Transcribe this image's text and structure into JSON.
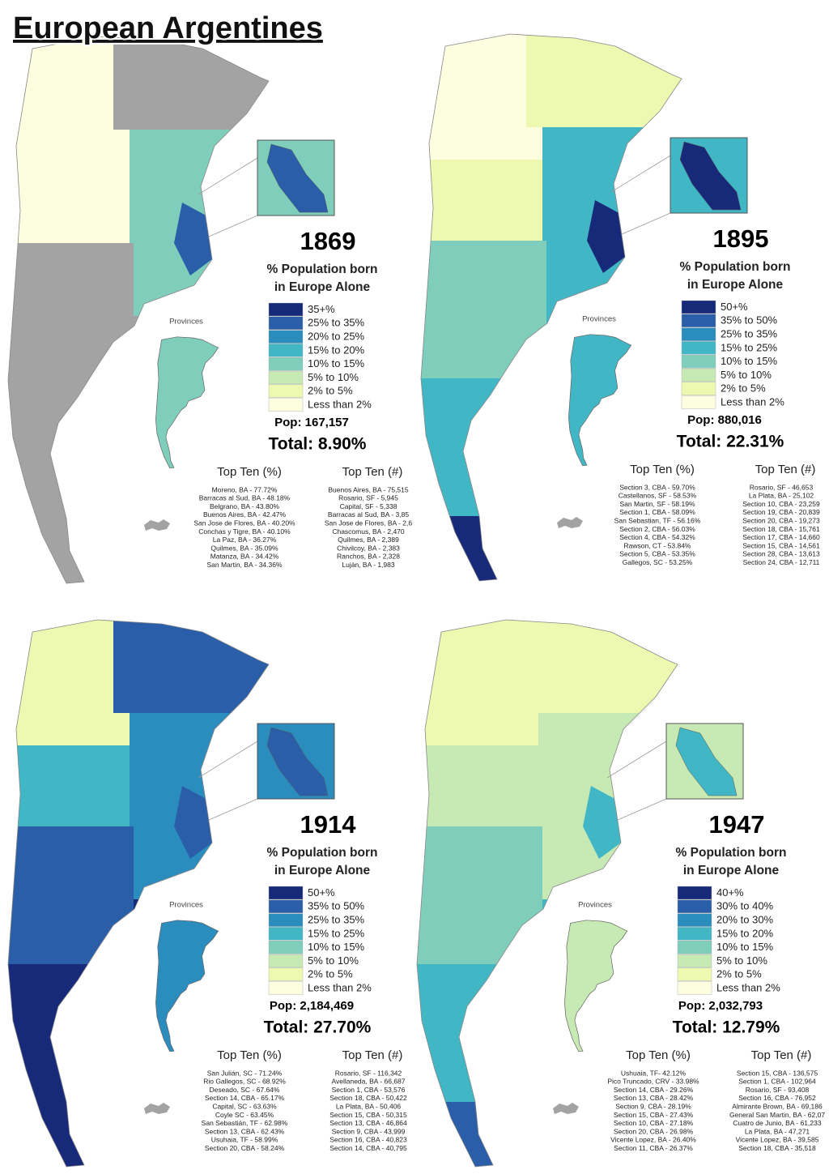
{
  "title": "European Argentines",
  "panels": [
    {
      "year": "1869",
      "subtitle": [
        "% Population born",
        "in Europe Alone"
      ],
      "provinces_label": "Provinces",
      "legend": [
        {
          "label": "35+%",
          "color": "#172a7a"
        },
        {
          "label": "25% to 35%",
          "color": "#2a5ea8"
        },
        {
          "label": "20% to 25%",
          "color": "#2b8cbe"
        },
        {
          "label": "15% to 20%",
          "color": "#41b6c4"
        },
        {
          "label": "10% to 15%",
          "color": "#7fcdbb"
        },
        {
          "label": "5% to 10%",
          "color": "#c7e9b4"
        },
        {
          "label": "2% to 5%",
          "color": "#edf8b1"
        },
        {
          "label": "Less than 2%",
          "color": "#fdfde0"
        }
      ],
      "pop": "Pop: 167,157",
      "total": "Total: 8.90%",
      "top_pct_heading": "Top Ten (%)",
      "top_pct": [
        "Moreno, BA - 77.72%",
        "Barracas al Sud, BA - 48.18%",
        "Belgrano, BA - 43.80%",
        "Buenos Aires, BA - 42.47%",
        "San Jose de Flores, BA - 40.20%",
        "Conchas y Tigre, BA - 40.10%",
        "La Paz, BA - 36.27%",
        "Quilmes, BA - 35.09%",
        "Matanza, BA - 34.42%",
        "San Martin, BA - 34.36%"
      ],
      "top_num_heading": "Top Ten (#)",
      "top_num": [
        "Buenos Aires, BA - 75,515",
        "Rosario, SF - 5,945",
        "Capital, SF - 5,338",
        "Barracas al Sud, BA - 3,85",
        "San Jose de Flores, BA - 2,6",
        "Chascomus, BA - 2,470",
        "Quilmes, BA - 2,389",
        "Chivilcoy, BA - 2,383",
        "Ranchos, BA - 2,328",
        "Luján, BA - 1,983"
      ]
    },
    {
      "year": "1895",
      "subtitle": [
        "% Population born",
        "in Europe Alone"
      ],
      "provinces_label": "Provinces",
      "legend": [
        {
          "label": "50+%",
          "color": "#172a7a"
        },
        {
          "label": "35% to 50%",
          "color": "#2a5ea8"
        },
        {
          "label": "25% to 35%",
          "color": "#2b8cbe"
        },
        {
          "label": "15% to 25%",
          "color": "#41b6c4"
        },
        {
          "label": "10% to 15%",
          "color": "#7fcdbb"
        },
        {
          "label": "5% to 10%",
          "color": "#c7e9b4"
        },
        {
          "label": "2% to 5%",
          "color": "#edf8b1"
        },
        {
          "label": "Less than 2%",
          "color": "#fdfde0"
        }
      ],
      "pop": "Pop: 880,016",
      "total": "Total: 22.31%",
      "top_pct_heading": "Top Ten (%)",
      "top_pct": [
        "Section 3, CBA - 59.70%",
        "Castellanos, SF - 58.53%",
        "San Martin, SF - 58.19%",
        "Section 1, CBA - 58.09%",
        "San Sebastian, TF - 56.16%",
        "Section 2, CBA - 56.03%",
        "Section 4, CBA - 54.32%",
        "Rawson, CT - 53.84%",
        "Section 5, CBA - 53.35%",
        "Gallegos, SC - 53.25%"
      ],
      "top_num_heading": "Top Ten (#)",
      "top_num": [
        "Rosario, SF - 46,653",
        "La Plata, BA - 25,102",
        "Section 10, CBA - 23,259",
        "Section 19, CBA - 20,839",
        "Section 20, CBA - 19,273",
        "Section 18, CBA - 15,761",
        "Section 17, CBA - 14,660",
        "Section 15, CBA - 14,561",
        "Section 28, CBA - 13,613",
        "Section 24, CBA - 12,711"
      ]
    },
    {
      "year": "1914",
      "subtitle": [
        "% Population born",
        "in Europe Alone"
      ],
      "provinces_label": "Provinces",
      "legend": [
        {
          "label": "50+%",
          "color": "#172a7a"
        },
        {
          "label": "35% to 50%",
          "color": "#2a5ea8"
        },
        {
          "label": "25% to 35%",
          "color": "#2b8cbe"
        },
        {
          "label": "15% to 25%",
          "color": "#41b6c4"
        },
        {
          "label": "10% to 15%",
          "color": "#7fcdbb"
        },
        {
          "label": "5% to 10%",
          "color": "#c7e9b4"
        },
        {
          "label": "2% to 5%",
          "color": "#edf8b1"
        },
        {
          "label": "Less than 2%",
          "color": "#fdfde0"
        }
      ],
      "pop": "Pop: 2,184,469",
      "total": "Total: 27.70%",
      "top_pct_heading": "Top Ten (%)",
      "top_pct": [
        "San Julián, SC - 71.24%",
        "Rio Gallegos, SC - 68.92%",
        "Deseado, SC - 67.64%",
        "Section 14, CBA - 65.17%",
        "Capital, SC - 63.63%",
        "Coyle SC - 63.45%",
        "San Sebastián, TF - 62.98%",
        "Section 13, CBA - 62.43%",
        "Usuhaia, TF - 58.99%",
        "Section 20, CBA - 58.24%"
      ],
      "top_num_heading": "Top Ten (#)",
      "top_num": [
        "Rosario, SF - 116,342",
        "Avellaneda, BA - 66,687",
        "Section 1, CBA - 53,576",
        "Section 18, CBA - 50,422",
        "La Plata, BA - 50,406",
        "Section 15, CBA - 50,315",
        "Section 13, CBA - 46,864",
        "Section 9, CBA - 43,999",
        "Section 16, CBA - 40,823",
        "Section 14, CBA - 40,795"
      ]
    },
    {
      "year": "1947",
      "subtitle": [
        "% Population born",
        "in Europe Alone"
      ],
      "provinces_label": "Provinces",
      "legend": [
        {
          "label": "40+%",
          "color": "#172a7a"
        },
        {
          "label": "30% to 40%",
          "color": "#2a5ea8"
        },
        {
          "label": "20% to 30%",
          "color": "#2b8cbe"
        },
        {
          "label": "15% to 20%",
          "color": "#41b6c4"
        },
        {
          "label": "10% to 15%",
          "color": "#7fcdbb"
        },
        {
          "label": "5% to 10%",
          "color": "#c7e9b4"
        },
        {
          "label": "2% to 5%",
          "color": "#edf8b1"
        },
        {
          "label": "Less than 2%",
          "color": "#fdfde0"
        }
      ],
      "pop": "Pop: 2,032,793",
      "total": "Total: 12.79%",
      "top_pct_heading": "Top Ten (%)",
      "top_pct": [
        "Ushuaia, TF- 42.12%",
        "Pico Truncado, CRV - 33.98%",
        "Section 14, CBA - 29.26%",
        "Section 13, CBA - 28.42%",
        "Section 9, CBA - 28.19%",
        "Section 15, CBA - 27.43%",
        "Section 10, CBA - 27.18%",
        "Section 20, CBA - 26.98%",
        "Vicente Lopez, BA - 26.40%",
        "Section 11, CBA - 26.37%"
      ],
      "top_num_heading": "Top Ten (#)",
      "top_num": [
        "Section 15, CBA - 136,575",
        "Section 1, CBA - 102,964",
        "Rosario, SF - 93,408",
        "Section 16, CBA - 76,952",
        "Almirante Brown, BA - 69,186",
        "General San Martin, BA - 62,07",
        "Cuatro de Junio, BA - 61,233",
        "La Plata, BA - 47,271",
        "Vicente Lopez, BA - 39,585",
        "Section 18, CBA - 35,518"
      ]
    }
  ]
}
